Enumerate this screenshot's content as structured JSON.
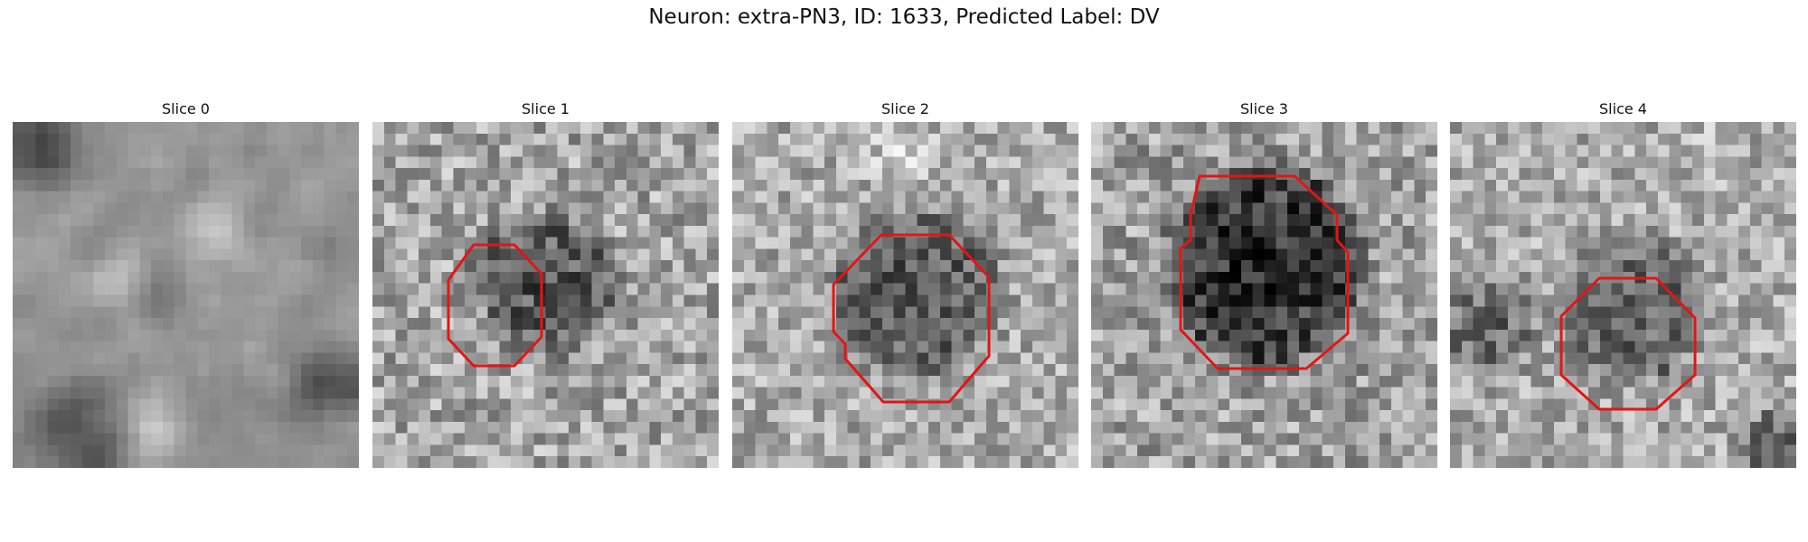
{
  "figure": {
    "title": "Neuron: extra-PN3, ID: 1633, Predicted Label: DV"
  },
  "colors": {
    "contour": "#e31515",
    "background": "#ffffff"
  },
  "slices": [
    {
      "title": "Slice 0",
      "has_contour": false
    },
    {
      "title": "Slice 1",
      "has_contour": true
    },
    {
      "title": "Slice 2",
      "has_contour": true
    },
    {
      "title": "Slice 3",
      "has_contour": true
    },
    {
      "title": "Slice 4",
      "has_contour": true
    }
  ]
}
